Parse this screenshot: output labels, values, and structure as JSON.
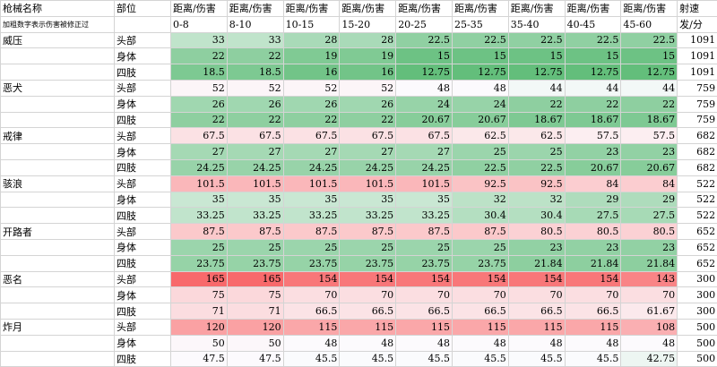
{
  "header": {
    "row1": [
      "枪械名称",
      "部位",
      "距离/伤害",
      "距离/伤害",
      "距离/伤害",
      "距离/伤害",
      "距离/伤害",
      "距离/伤害",
      "距离/伤害",
      "距离/伤害",
      "距离/伤害",
      "射速"
    ],
    "row2": [
      "加粗数字表示伤害被修正过",
      "0-8",
      "8-10",
      "10-15",
      "15-20",
      "20-25",
      "25-35",
      "35-40",
      "40-45",
      "45-60",
      "发/分"
    ]
  },
  "groups": [
    {
      "name": "威压",
      "rows": [
        {
          "part": "头部",
          "values": [
            33,
            33,
            28,
            28,
            22.5,
            22.5,
            22.5,
            22.5,
            22.5
          ],
          "rate": 1091
        },
        {
          "part": "身体",
          "values": [
            22,
            22,
            19,
            19,
            15,
            15,
            15,
            15,
            15
          ],
          "rate": 1091
        },
        {
          "part": "四肢",
          "values": [
            18.5,
            18.5,
            16,
            16,
            12.75,
            12.75,
            12.75,
            12.75,
            12.75
          ],
          "rate": 1091
        }
      ]
    },
    {
      "name": "恶犬",
      "rows": [
        {
          "part": "头部",
          "values": [
            52,
            52,
            52,
            52,
            48,
            48,
            44,
            44,
            44
          ],
          "rate": 759
        },
        {
          "part": "身体",
          "values": [
            26,
            26,
            26,
            26,
            24,
            24,
            22,
            22,
            22
          ],
          "rate": 759
        },
        {
          "part": "四肢",
          "values": [
            22,
            22,
            22,
            22,
            20.67,
            20.67,
            18.67,
            18.67,
            18.67
          ],
          "rate": 759
        }
      ]
    },
    {
      "name": "戒律",
      "rows": [
        {
          "part": "头部",
          "values": [
            67.5,
            67.5,
            67.5,
            67.5,
            67.5,
            62.5,
            62.5,
            57.5,
            57.5
          ],
          "rate": 682
        },
        {
          "part": "身体",
          "values": [
            27,
            27,
            27,
            27,
            27,
            25,
            25,
            23,
            23
          ],
          "rate": 682
        },
        {
          "part": "四肢",
          "values": [
            24.25,
            24.25,
            24.25,
            24.25,
            24.25,
            22.5,
            22.5,
            20.67,
            20.67
          ],
          "rate": 682
        }
      ]
    },
    {
      "name": "骇浪",
      "rows": [
        {
          "part": "头部",
          "values": [
            101.5,
            101.5,
            101.5,
            101.5,
            101.5,
            92.5,
            92.5,
            84,
            84
          ],
          "rate": 522
        },
        {
          "part": "身体",
          "values": [
            35,
            35,
            35,
            35,
            35,
            32,
            32,
            29,
            29
          ],
          "rate": 522
        },
        {
          "part": "四肢",
          "values": [
            33.25,
            33.25,
            33.25,
            33.25,
            33.25,
            30.4,
            30.4,
            27.5,
            27.5
          ],
          "rate": 522
        }
      ]
    },
    {
      "name": "开路者",
      "rows": [
        {
          "part": "头部",
          "values": [
            87.5,
            87.5,
            87.5,
            87.5,
            87.5,
            87.5,
            80.5,
            80.5,
            80.5
          ],
          "rate": 652
        },
        {
          "part": "身体",
          "values": [
            25,
            25,
            25,
            25,
            25,
            25,
            23,
            23,
            23
          ],
          "rate": 652
        },
        {
          "part": "四肢",
          "values": [
            23.75,
            23.75,
            23.75,
            23.75,
            23.75,
            23.75,
            21.84,
            21.84,
            21.84
          ],
          "rate": 652
        }
      ]
    },
    {
      "name": "恶名",
      "rows": [
        {
          "part": "头部",
          "values": [
            165,
            165,
            154,
            154,
            154,
            154,
            154,
            154,
            143
          ],
          "rate": 300
        },
        {
          "part": "身体",
          "values": [
            75,
            75,
            70,
            70,
            70,
            70,
            70,
            70,
            70
          ],
          "rate": 300
        },
        {
          "part": "四肢",
          "values": [
            71,
            71,
            66.5,
            66.5,
            66.5,
            66.5,
            66.5,
            66.5,
            61.67
          ],
          "rate": 300
        }
      ]
    },
    {
      "name": "炸月",
      "rows": [
        {
          "part": "头部",
          "values": [
            120,
            120,
            115,
            115,
            115,
            115,
            115,
            115,
            108
          ],
          "rate": 500
        },
        {
          "part": "身体",
          "values": [
            50,
            50,
            48,
            48,
            48,
            48,
            48,
            48,
            48
          ],
          "rate": 500
        },
        {
          "part": "四肢",
          "values": [
            47.5,
            47.5,
            45.5,
            45.5,
            45.5,
            45.5,
            45.5,
            45.5,
            42.75
          ],
          "rate": 500
        }
      ]
    }
  ]
}
